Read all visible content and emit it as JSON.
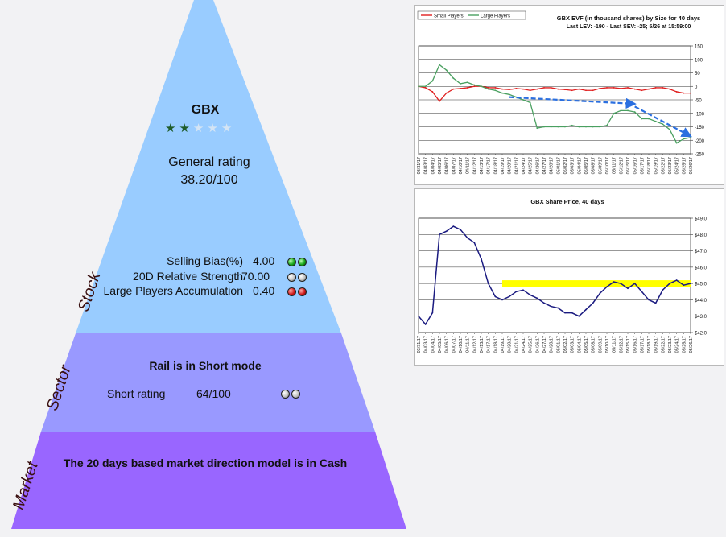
{
  "stock": {
    "ticker": "GBX",
    "stars_filled": 2,
    "stars_total": 5,
    "general_rating_label": "General rating",
    "general_rating_value": "38.20/100",
    "metrics": [
      {
        "label": "Selling Bias(%)",
        "value": "4.00",
        "dots": [
          "green",
          "green"
        ]
      },
      {
        "label": "20D Relative Strength",
        "value": "70.00",
        "dots": [
          "gray",
          "gray"
        ]
      },
      {
        "label": "Large Players Accumulation",
        "value": "0.40",
        "dots": [
          "red",
          "red"
        ]
      }
    ]
  },
  "sector": {
    "title": "Rail is in Short mode",
    "rating_label": "Short rating",
    "rating_value": "64/100",
    "dots": [
      "gray",
      "gray"
    ]
  },
  "market": {
    "text": "The 20 days based market direction model is in Cash"
  },
  "side_labels": {
    "stock": "Stock",
    "sector": "Sector",
    "market": "Market"
  },
  "colors": {
    "stock_band": "#99ccff",
    "sector_band": "#9999ff",
    "market_band": "#9966ff",
    "star_filled": "#1f5c2a",
    "star_empty": "#d4e4f4"
  },
  "chart_data": [
    {
      "type": "line",
      "title": "GBX EVF (in thousand shares) by Size for 40 days",
      "subtitle": "Last LEV: -190 - Last SEV: -25; 5/26 at 15:59:00",
      "ylim": [
        -250,
        150
      ],
      "yticks": [
        150,
        100,
        50,
        0,
        -50,
        -100,
        -150,
        -200,
        -250
      ],
      "grid": true,
      "legend_position": "top-left",
      "x": [
        "03/31/17",
        "04/03/17",
        "04/04/17",
        "04/05/17",
        "04/06/17",
        "04/07/17",
        "04/10/17",
        "04/11/17",
        "04/12/17",
        "04/13/17",
        "04/17/17",
        "04/18/17",
        "04/19/17",
        "04/20/17",
        "04/21/17",
        "04/24/17",
        "04/25/17",
        "04/26/17",
        "04/27/17",
        "04/28/17",
        "05/01/17",
        "05/02/17",
        "05/03/17",
        "05/04/17",
        "05/05/17",
        "05/08/17",
        "05/09/17",
        "05/10/17",
        "05/11/17",
        "05/12/17",
        "05/15/17",
        "05/16/17",
        "05/17/17",
        "05/18/17",
        "05/19/17",
        "05/22/17",
        "05/23/17",
        "05/24/17",
        "05/25/17",
        "05/26/17"
      ],
      "series": [
        {
          "name": "Small Players",
          "color": "#e02020",
          "values": [
            0,
            -5,
            -20,
            -55,
            -25,
            -10,
            -8,
            -5,
            0,
            0,
            -5,
            -5,
            -10,
            -12,
            -8,
            -10,
            -15,
            -10,
            -5,
            -5,
            -10,
            -12,
            -15,
            -10,
            -15,
            -15,
            -8,
            -5,
            -5,
            -8,
            -5,
            -10,
            -15,
            -10,
            -5,
            -5,
            -10,
            -20,
            -25,
            -25
          ]
        },
        {
          "name": "Large Players",
          "color": "#4aa060",
          "values": [
            0,
            0,
            20,
            80,
            60,
            30,
            10,
            15,
            5,
            0,
            -10,
            -15,
            -25,
            -30,
            -40,
            -50,
            -60,
            -155,
            -150,
            -150,
            -150,
            -150,
            -145,
            -150,
            -150,
            -150,
            -150,
            -145,
            -100,
            -90,
            -90,
            -95,
            -120,
            -120,
            -130,
            -140,
            -160,
            -210,
            -195,
            -190
          ]
        }
      ],
      "trend_arrows": [
        {
          "from": [
            "04/20/17",
            -40
          ],
          "to": [
            "05/16/17",
            -65
          ]
        },
        {
          "from": [
            "05/16/17",
            -75
          ],
          "to": [
            "05/26/17",
            -185
          ]
        }
      ],
      "trend_color": "#2a6fe0"
    },
    {
      "type": "line",
      "title": "GBX Share Price, 40 days",
      "ylim": [
        42,
        49
      ],
      "yticks": [
        "$49.0",
        "$48.0",
        "$47.0",
        "$46.0",
        "$45.0",
        "$44.0",
        "$43.0",
        "$42.0"
      ],
      "grid": true,
      "x": [
        "03/31/17",
        "04/03/17",
        "04/04/17",
        "04/05/17",
        "04/06/17",
        "04/07/17",
        "04/10/17",
        "04/11/17",
        "04/12/17",
        "04/13/17",
        "04/17/17",
        "04/18/17",
        "04/19/17",
        "04/20/17",
        "04/21/17",
        "04/24/17",
        "04/25/17",
        "04/26/17",
        "04/27/17",
        "04/28/17",
        "05/01/17",
        "05/02/17",
        "05/03/17",
        "05/04/17",
        "05/05/17",
        "05/08/17",
        "05/09/17",
        "05/10/17",
        "05/11/17",
        "05/12/17",
        "05/15/17",
        "05/16/17",
        "05/17/17",
        "05/18/17",
        "05/19/17",
        "05/22/17",
        "05/23/17",
        "05/24/17",
        "05/25/17",
        "05/26/17"
      ],
      "series": [
        {
          "name": "Price",
          "color": "#1a1a80",
          "values": [
            43.0,
            42.5,
            43.2,
            48.0,
            48.2,
            48.5,
            48.3,
            47.8,
            47.5,
            46.5,
            45.0,
            44.2,
            44.0,
            44.2,
            44.5,
            44.6,
            44.3,
            44.1,
            43.8,
            43.6,
            43.5,
            43.2,
            43.2,
            43.0,
            43.4,
            43.8,
            44.4,
            44.8,
            45.1,
            45.0,
            44.7,
            45.0,
            44.5,
            44.0,
            43.8,
            44.6,
            45.0,
            45.2,
            44.9,
            45.0
          ]
        }
      ],
      "resistance_band": {
        "from": 44.8,
        "to": 45.2,
        "color": "#ffff00"
      }
    }
  ]
}
